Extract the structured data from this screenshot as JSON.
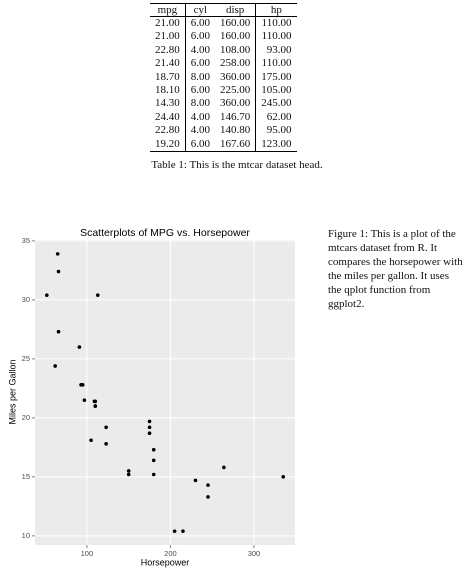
{
  "table": {
    "header": [
      "mpg",
      "cyl",
      "disp",
      "hp"
    ],
    "rows": [
      [
        "21.00",
        "6.00",
        "160.00",
        "110.00"
      ],
      [
        "21.00",
        "6.00",
        "160.00",
        "110.00"
      ],
      [
        "22.80",
        "4.00",
        "108.00",
        "93.00"
      ],
      [
        "21.40",
        "6.00",
        "258.00",
        "110.00"
      ],
      [
        "18.70",
        "8.00",
        "360.00",
        "175.00"
      ],
      [
        "18.10",
        "6.00",
        "225.00",
        "105.00"
      ],
      [
        "14.30",
        "8.00",
        "360.00",
        "245.00"
      ],
      [
        "24.40",
        "4.00",
        "146.70",
        "62.00"
      ],
      [
        "22.80",
        "4.00",
        "140.80",
        "95.00"
      ],
      [
        "19.20",
        "6.00",
        "167.60",
        "123.00"
      ]
    ],
    "caption": "Table 1: This is the mtcar dataset head."
  },
  "figure": {
    "caption": "Figure 1: This is a plot of the mtcars dataset from R. It compares the horsepower with the miles per gallon. It uses the qplot function from ggplot2."
  },
  "chart_data": {
    "type": "scatter",
    "title": "Scatterplots of MPG vs. Horsepower",
    "x_label": "Horsepower",
    "y_label": "Miles per Gallon",
    "x": [
      110,
      110,
      93,
      110,
      175,
      105,
      245,
      62,
      95,
      123,
      123,
      180,
      180,
      180,
      205,
      215,
      230,
      66,
      52,
      65,
      97,
      150,
      150,
      245,
      175,
      66,
      91,
      113,
      264,
      175,
      335,
      109
    ],
    "values": [
      21.0,
      21.0,
      22.8,
      21.4,
      18.7,
      18.1,
      14.3,
      24.4,
      22.8,
      19.2,
      17.8,
      16.4,
      17.3,
      15.2,
      10.4,
      10.4,
      14.7,
      32.4,
      30.4,
      33.9,
      21.5,
      15.5,
      15.2,
      13.3,
      19.2,
      27.3,
      26.0,
      30.4,
      15.8,
      19.7,
      15.0,
      21.4
    ],
    "color": "#000000",
    "xlim": [
      37.85,
      349.15
    ],
    "ylim": [
      9.225,
      35.075
    ],
    "xticks": [
      100,
      200,
      300
    ],
    "yticks": [
      10,
      15,
      20,
      25,
      30,
      35
    ],
    "grid": true
  }
}
